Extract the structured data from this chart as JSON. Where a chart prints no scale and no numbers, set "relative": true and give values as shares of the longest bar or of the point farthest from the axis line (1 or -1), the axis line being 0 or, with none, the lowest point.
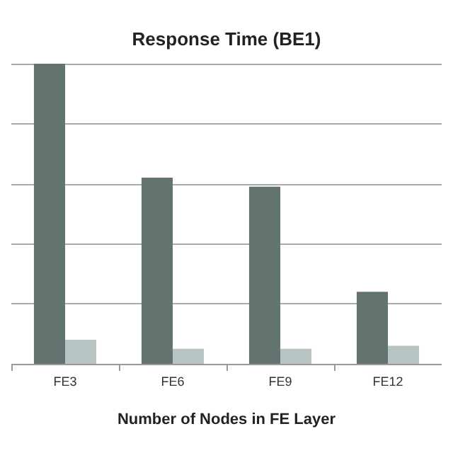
{
  "chart_data": {
    "type": "bar",
    "title": "Response Time (BE1)",
    "xlabel": "Number of Nodes in FE Layer",
    "categories": [
      "FE3",
      "FE6",
      "FE9",
      "FE12"
    ],
    "relative": true,
    "grid": "y",
    "series": [
      {
        "color": "#637470",
        "values": [
          1,
          0.62,
          0.59,
          0.24
        ]
      },
      {
        "color": "#b8c4c4",
        "values": [
          0.08,
          0.05,
          0.05,
          0.06
        ]
      }
    ]
  }
}
